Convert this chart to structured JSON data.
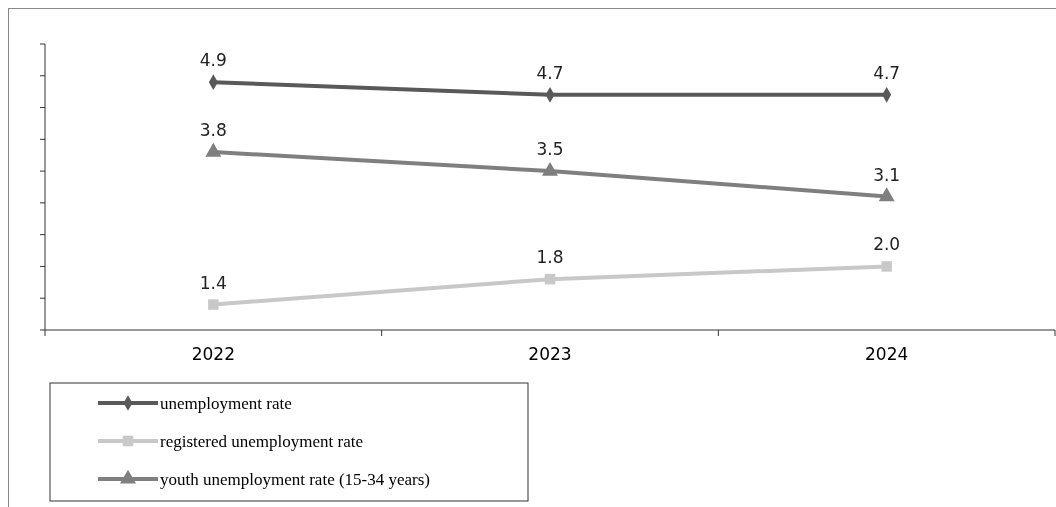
{
  "chart_data": {
    "type": "line",
    "categories": [
      "2022",
      "2023",
      "2024"
    ],
    "series": [
      {
        "name": "unemployment rate",
        "color": "#595959",
        "marker": "diamond",
        "values": [
          4.9,
          4.7,
          4.7
        ]
      },
      {
        "name": "registered unemployment rate",
        "color": "#c8c8c8",
        "marker": "square",
        "values": [
          1.4,
          1.8,
          2.0
        ],
        "value_labels": [
          "1.4",
          "1.8",
          "2.0"
        ]
      },
      {
        "name": "youth unemployment rate (15-34 years)",
        "color": "#7f7f7f",
        "marker": "triangle",
        "values": [
          3.8,
          3.5,
          3.1
        ]
      }
    ],
    "ylim": [
      1,
      5.5
    ],
    "yticks": [
      {
        "value": 1,
        "label": null
      },
      {
        "value": 1.5,
        "label": null
      },
      {
        "value": 2,
        "label": null
      },
      {
        "value": 2.5,
        "label": null
      },
      {
        "value": 3,
        "label": null
      },
      {
        "value": 3.5,
        "label": null
      },
      {
        "value": 4,
        "label": null
      },
      {
        "value": 4.5,
        "label": null
      },
      {
        "value": 5,
        "label": null
      },
      {
        "value": 5.5,
        "label": null
      }
    ],
    "data_labels": true,
    "legend": "bottom left",
    "line_style": "solid",
    "grid": false
  }
}
